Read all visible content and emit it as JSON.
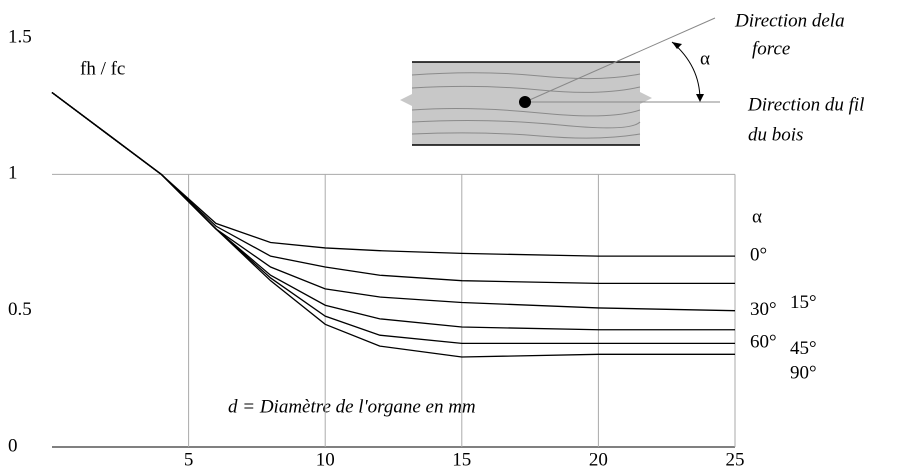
{
  "chart_data": {
    "type": "line",
    "y_label": "fh / fc",
    "x_label": "d = Diamètre de l'organe en mm",
    "legend_title": "α",
    "x": [
      0,
      2,
      4,
      6,
      8,
      10,
      12,
      15,
      20,
      25
    ],
    "series": [
      {
        "name": "0°",
        "color": "#000000",
        "values": [
          1.3,
          1.15,
          1.0,
          0.82,
          0.75,
          0.73,
          0.72,
          0.71,
          0.7,
          0.7
        ]
      },
      {
        "name": "15°",
        "color": "#000000",
        "values": [
          1.3,
          1.15,
          1.0,
          0.81,
          0.7,
          0.66,
          0.63,
          0.61,
          0.6,
          0.6
        ]
      },
      {
        "name": "30°",
        "color": "#000000",
        "values": [
          1.3,
          1.15,
          1.0,
          0.8,
          0.66,
          0.58,
          0.55,
          0.53,
          0.51,
          0.5
        ]
      },
      {
        "name": "45°",
        "color": "#000000",
        "values": [
          1.3,
          1.15,
          1.0,
          0.8,
          0.63,
          0.52,
          0.47,
          0.44,
          0.43,
          0.43
        ]
      },
      {
        "name": "60°",
        "color": "#000000",
        "values": [
          1.3,
          1.15,
          1.0,
          0.8,
          0.62,
          0.48,
          0.41,
          0.38,
          0.38,
          0.38
        ]
      },
      {
        "name": "90°",
        "color": "#000000",
        "values": [
          1.3,
          1.15,
          1.0,
          0.8,
          0.61,
          0.45,
          0.37,
          0.33,
          0.34,
          0.34
        ]
      }
    ],
    "xlim": [
      0,
      25
    ],
    "ylim": [
      0,
      1.5
    ],
    "xticks": [
      5,
      10,
      15,
      20,
      25
    ],
    "yticks": [
      0,
      0.5,
      1,
      1.5
    ],
    "grid": true,
    "inset": {
      "force_label": [
        "Direction dela",
        "force"
      ],
      "grain_label": [
        "Direction du fil",
        "du bois"
      ],
      "angle_label": "α"
    }
  }
}
